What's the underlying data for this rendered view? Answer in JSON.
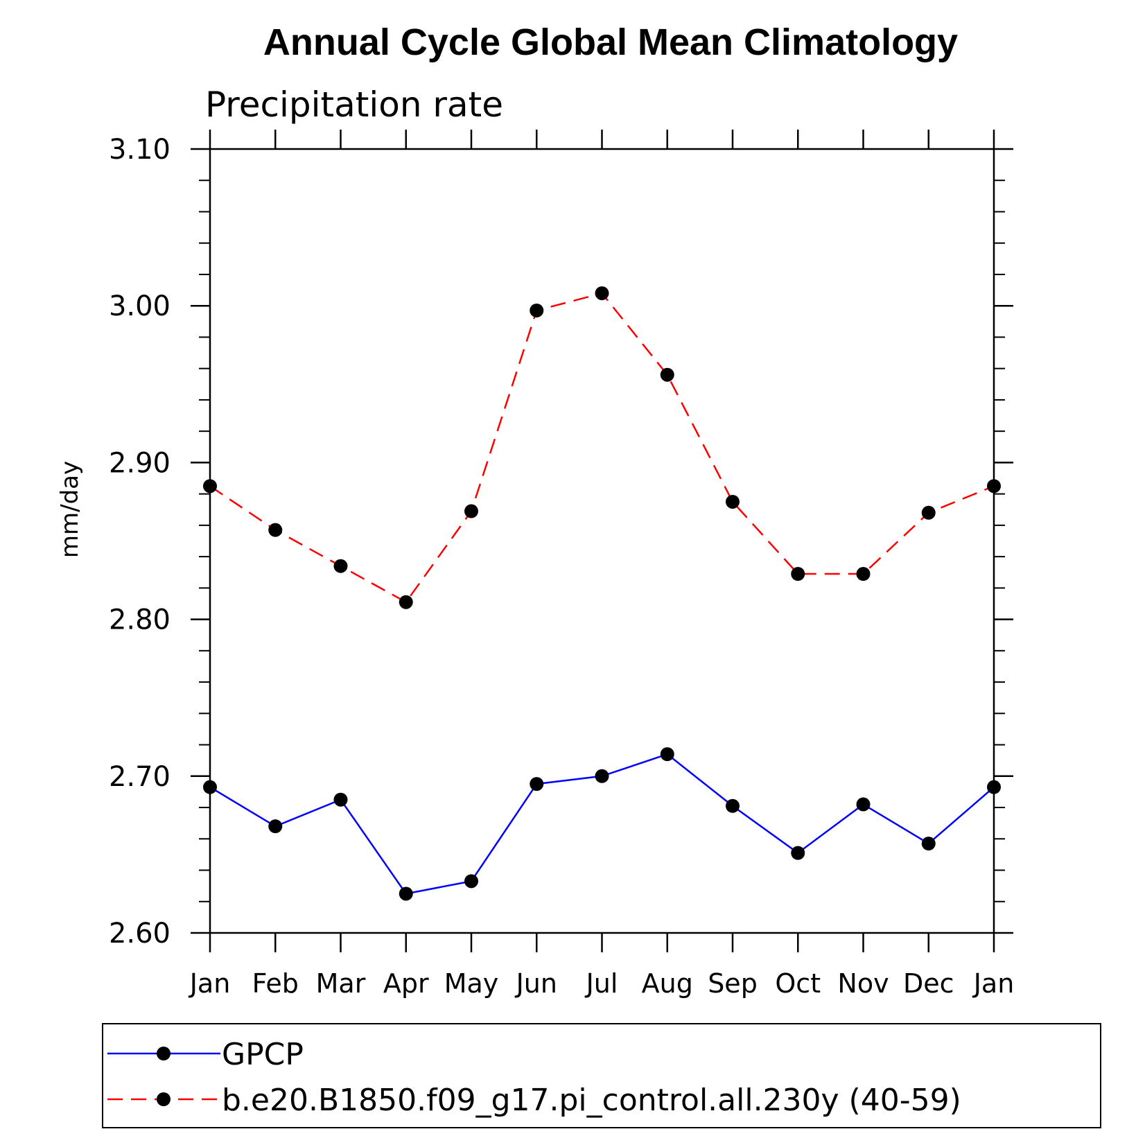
{
  "chart_data": {
    "type": "line",
    "title": "Annual Cycle Global Mean Climatology",
    "subtitle": "Precipitation rate",
    "ylabel": "mm/day",
    "xlabel": "",
    "categories": [
      "Jan",
      "Feb",
      "Mar",
      "Apr",
      "May",
      "Jun",
      "Jul",
      "Aug",
      "Sep",
      "Oct",
      "Nov",
      "Dec",
      "Jan"
    ],
    "ylim": [
      2.6,
      3.1
    ],
    "yticks": [
      "2.60",
      "2.70",
      "2.80",
      "2.90",
      "3.00",
      "3.10"
    ],
    "grid": false,
    "legend_placement": "bottom",
    "series": [
      {
        "name": "GPCP",
        "color": "#0000ff",
        "dash": "solid",
        "values": [
          2.693,
          2.668,
          2.685,
          2.625,
          2.633,
          2.695,
          2.7,
          2.714,
          2.681,
          2.651,
          2.682,
          2.657,
          2.693
        ]
      },
      {
        "name": "b.e20.B1850.f09_g17.pi_control.all.230y (40-59)",
        "color": "#ff0000",
        "dash": "dashed",
        "values": [
          2.885,
          2.857,
          2.834,
          2.811,
          2.869,
          2.997,
          3.008,
          2.956,
          2.875,
          2.829,
          2.829,
          2.868,
          2.885
        ]
      }
    ]
  }
}
